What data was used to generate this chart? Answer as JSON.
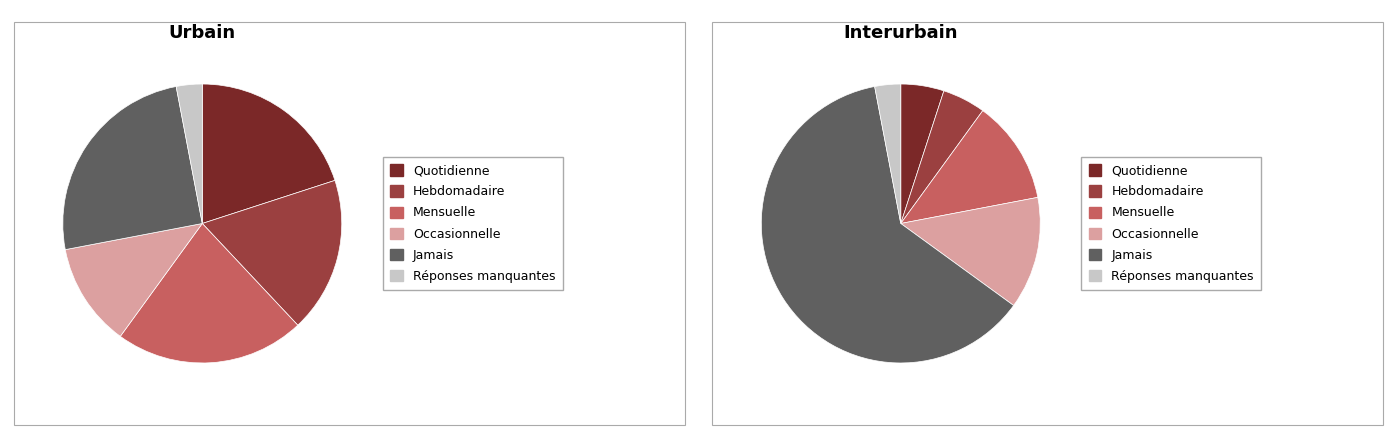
{
  "urbain": {
    "title": "Urbain",
    "values": [
      20,
      18,
      22,
      12,
      25,
      3
    ],
    "colors": [
      "#7B2828",
      "#9B4040",
      "#C86060",
      "#DCA0A0",
      "#606060",
      "#C8C8C8"
    ],
    "startangle": 90
  },
  "interurbain": {
    "title": "Interurbain",
    "values": [
      5,
      5,
      12,
      13,
      62,
      3
    ],
    "colors": [
      "#7B2828",
      "#9B4040",
      "#C86060",
      "#DCA0A0",
      "#606060",
      "#C8C8C8"
    ],
    "startangle": 90
  },
  "legend_labels": [
    "Quotidienne",
    "Hebdomadaire",
    "Mensuelle",
    "Occasionnelle",
    "Jamais",
    "Réponses manquantes"
  ],
  "legend_colors": [
    "#7B2828",
    "#9B4040",
    "#C86060",
    "#DCA0A0",
    "#606060",
    "#C8C8C8"
  ],
  "figsize": [
    13.97,
    4.47
  ],
  "dpi": 100,
  "title_fontsize": 13,
  "legend_fontsize": 9
}
